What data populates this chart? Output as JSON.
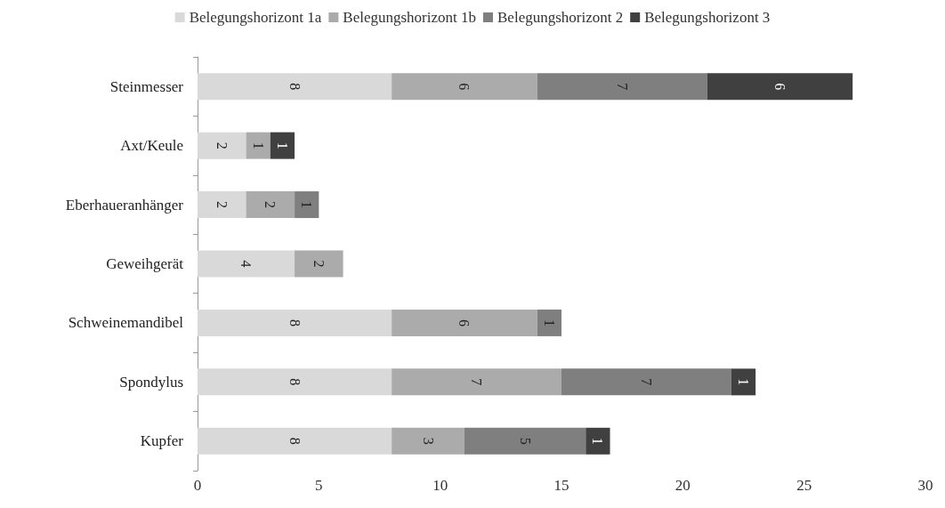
{
  "chart_data": {
    "type": "bar",
    "orientation": "horizontal",
    "stacked": true,
    "data_labels": true,
    "grid": false,
    "legend": "top",
    "categories": [
      "Steinmesser",
      "Axt/Keule",
      "Eberhaueranhänger",
      "Geweihgerät",
      "Schweinemandibel",
      "Spondylus",
      "Kupfer"
    ],
    "series": [
      {
        "name": "Belegungshorizont 1a",
        "color": "#d9d9d9",
        "values": [
          8,
          2,
          2,
          4,
          8,
          8,
          8
        ]
      },
      {
        "name": "Belegungshorizont 1b",
        "color": "#ababab",
        "values": [
          6,
          1,
          2,
          2,
          6,
          7,
          3
        ]
      },
      {
        "name": "Belegungshorizont 2",
        "color": "#7f7f7f",
        "values": [
          7,
          null,
          1,
          null,
          1,
          7,
          5
        ]
      },
      {
        "name": "Belegungshorizont 3",
        "color": "#404040",
        "values": [
          6,
          1,
          null,
          null,
          null,
          1,
          1
        ]
      }
    ],
    "xlim": [
      0,
      30
    ],
    "xticks": [
      0,
      5,
      10,
      15,
      20,
      25,
      30
    ]
  }
}
